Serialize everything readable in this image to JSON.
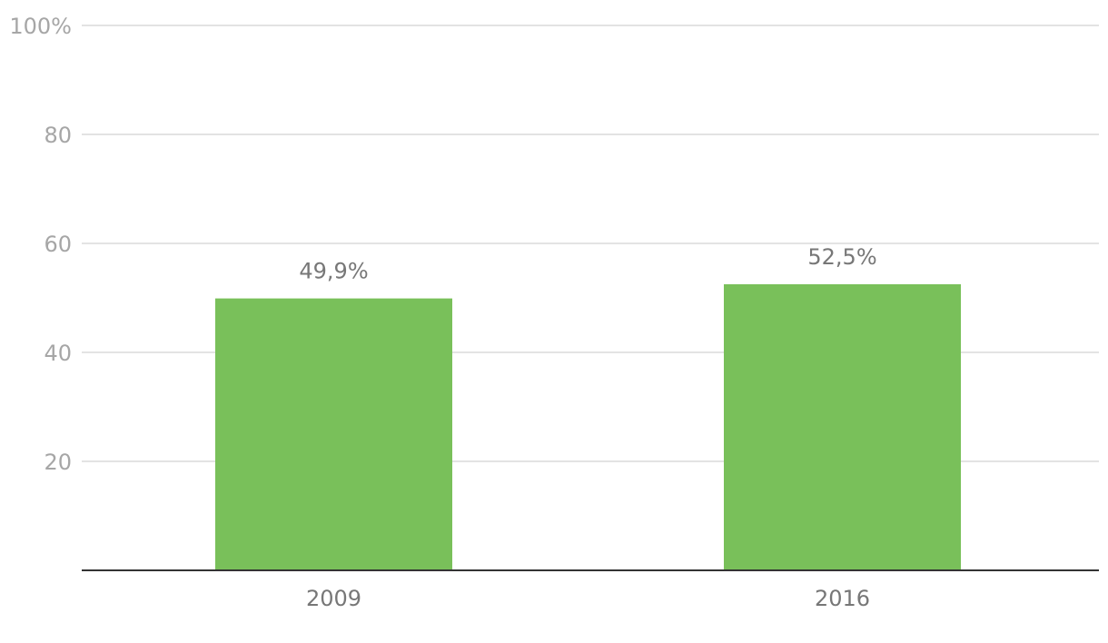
{
  "chart_data": {
    "type": "bar",
    "categories": [
      "2009",
      "2016"
    ],
    "values": [
      49.9,
      52.5
    ],
    "data_labels": [
      "49,9%",
      "52,5%"
    ],
    "yticks": [
      20,
      40,
      60,
      80,
      100
    ],
    "ytick_labels": [
      "20",
      "40",
      "60",
      "80",
      "100%"
    ],
    "ylim": [
      0,
      100
    ],
    "grid": true,
    "colors": {
      "bar": "#79c05a",
      "grid": "#e3e3e3",
      "axis": "#333333",
      "tick_text": "#a6a6a6",
      "label_text": "#777777"
    }
  }
}
